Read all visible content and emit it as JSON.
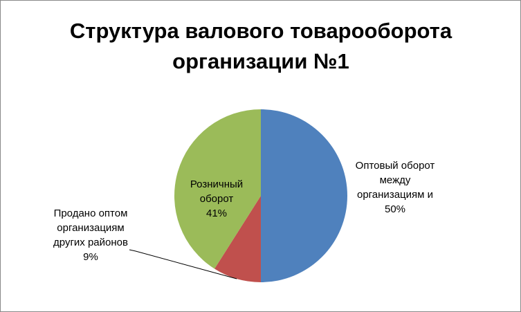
{
  "chart_data": {
    "type": "pie",
    "title": "Структура валового товарооборота организации №1",
    "categories": [
      "Оптовый оборот между организациям и",
      "Продано оптом организациям других районов",
      "Розничный оборот"
    ],
    "values": [
      50,
      9,
      41
    ],
    "value_labels": [
      "50%",
      "9%",
      "41%"
    ],
    "colors": [
      "#4f81bd",
      "#c0504d",
      "#9bbb59"
    ]
  }
}
